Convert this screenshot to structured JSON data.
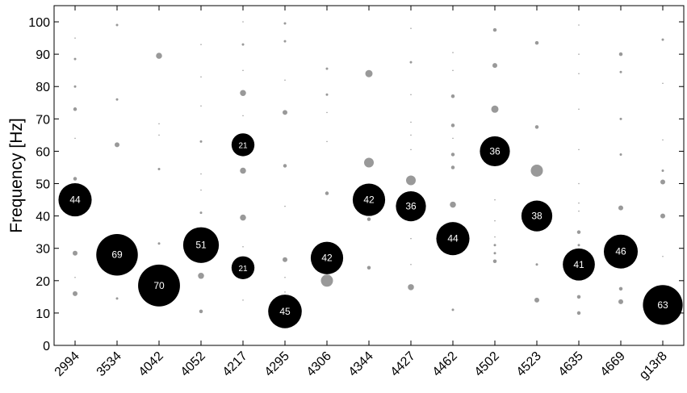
{
  "chart_data": {
    "type": "scatter",
    "subtype": "bubble",
    "ylabel": "Frequency [Hz]",
    "xlabel": "",
    "ylim": [
      0,
      105
    ],
    "yticks": [
      0,
      10,
      20,
      30,
      40,
      50,
      60,
      70,
      80,
      90,
      100
    ],
    "categories": [
      "2994",
      "3534",
      "4042",
      "4052",
      "4217",
      "4295",
      "4306",
      "4344",
      "4427",
      "4462",
      "4502",
      "4523",
      "4635",
      "4669",
      "g13r8"
    ],
    "grid": false,
    "colors": {
      "highlight": "#000000",
      "background_points": "#999999",
      "label": "#ffffff"
    },
    "highlighted": [
      {
        "category": "2994",
        "y": 45,
        "value": 44
      },
      {
        "category": "3534",
        "y": 28,
        "value": 69
      },
      {
        "category": "4042",
        "y": 18.5,
        "value": 70
      },
      {
        "category": "4052",
        "y": 31,
        "value": 51
      },
      {
        "category": "4217",
        "y": 62,
        "value": 21
      },
      {
        "category": "4217",
        "y": 24,
        "value": 21
      },
      {
        "category": "4295",
        "y": 10.5,
        "value": 45
      },
      {
        "category": "4306",
        "y": 27,
        "value": 42
      },
      {
        "category": "4344",
        "y": 45,
        "value": 42
      },
      {
        "category": "4427",
        "y": 43,
        "value": 36
      },
      {
        "category": "4462",
        "y": 33,
        "value": 44
      },
      {
        "category": "4502",
        "y": 60,
        "value": 36
      },
      {
        "category": "4523",
        "y": 40,
        "value": 38
      },
      {
        "category": "4635",
        "y": 25,
        "value": 41
      },
      {
        "category": "4669",
        "y": 29,
        "value": 46
      },
      {
        "category": "g13r8",
        "y": 12.5,
        "value": 63
      }
    ],
    "background": [
      {
        "category": "2994",
        "points": [
          [
            95,
            1
          ],
          [
            88.5,
            2
          ],
          [
            80,
            2
          ],
          [
            73,
            3
          ],
          [
            64,
            1
          ],
          [
            51.5,
            3
          ],
          [
            28.5,
            4
          ],
          [
            21,
            1
          ],
          [
            16,
            4
          ]
        ]
      },
      {
        "category": "3534",
        "points": [
          [
            99,
            2
          ],
          [
            76,
            2
          ],
          [
            62,
            4
          ],
          [
            14.5,
            2
          ]
        ]
      },
      {
        "category": "4042",
        "points": [
          [
            89.5,
            5
          ],
          [
            68.5,
            1
          ],
          [
            65,
            1
          ],
          [
            54.5,
            2
          ],
          [
            31.5,
            2
          ]
        ]
      },
      {
        "category": "4052",
        "points": [
          [
            93,
            1
          ],
          [
            83,
            1
          ],
          [
            74,
            1
          ],
          [
            63,
            2
          ],
          [
            53,
            1
          ],
          [
            48,
            1
          ],
          [
            41,
            2
          ],
          [
            21.5,
            5
          ],
          [
            10.5,
            3
          ]
        ]
      },
      {
        "category": "4217",
        "points": [
          [
            100,
            1
          ],
          [
            93,
            2
          ],
          [
            85,
            1
          ],
          [
            78,
            5
          ],
          [
            71,
            1
          ],
          [
            54,
            5
          ],
          [
            39.5,
            5
          ],
          [
            30.5,
            1
          ],
          [
            14,
            1
          ]
        ]
      },
      {
        "category": "4295",
        "points": [
          [
            99.5,
            2
          ],
          [
            94,
            2
          ],
          [
            82,
            1
          ],
          [
            72,
            4
          ],
          [
            55.5,
            3
          ],
          [
            43,
            1
          ],
          [
            26.5,
            4
          ],
          [
            21,
            1
          ],
          [
            16.5,
            1
          ]
        ]
      },
      {
        "category": "4306",
        "points": [
          [
            85.5,
            2
          ],
          [
            77.5,
            2
          ],
          [
            72,
            1
          ],
          [
            63,
            1
          ],
          [
            47,
            3
          ],
          [
            20,
            10
          ]
        ]
      },
      {
        "category": "4344",
        "points": [
          [
            84,
            6
          ],
          [
            56.5,
            8
          ],
          [
            39,
            3
          ],
          [
            24,
            3
          ]
        ]
      },
      {
        "category": "4427",
        "points": [
          [
            98,
            1
          ],
          [
            87.5,
            2
          ],
          [
            77.5,
            1
          ],
          [
            69,
            1
          ],
          [
            65,
            1
          ],
          [
            60.5,
            1
          ],
          [
            51,
            8
          ],
          [
            33,
            1
          ],
          [
            25,
            1
          ],
          [
            18,
            5
          ]
        ]
      },
      {
        "category": "4462",
        "points": [
          [
            90.5,
            1
          ],
          [
            85,
            1
          ],
          [
            77,
            3
          ],
          [
            68,
            3
          ],
          [
            64,
            1
          ],
          [
            59,
            3
          ],
          [
            55,
            3
          ],
          [
            43.5,
            5
          ],
          [
            11,
            2
          ]
        ]
      },
      {
        "category": "4502",
        "points": [
          [
            97.5,
            3
          ],
          [
            86.5,
            4
          ],
          [
            73,
            6
          ],
          [
            45,
            1
          ],
          [
            38.5,
            1
          ],
          [
            33.5,
            1
          ],
          [
            31,
            2
          ],
          [
            28.5,
            2
          ],
          [
            26,
            3
          ]
        ]
      },
      {
        "category": "4523",
        "points": [
          [
            93.5,
            3
          ],
          [
            67.5,
            3
          ],
          [
            54,
            10
          ],
          [
            25,
            2
          ],
          [
            14,
            4
          ]
        ]
      },
      {
        "category": "4635",
        "points": [
          [
            99,
            1
          ],
          [
            90,
            1
          ],
          [
            84,
            1
          ],
          [
            73,
            1
          ],
          [
            60.5,
            1
          ],
          [
            50,
            1
          ],
          [
            44,
            1
          ],
          [
            41.5,
            1
          ],
          [
            35,
            3
          ],
          [
            31,
            2
          ],
          [
            20.5,
            1
          ],
          [
            15,
            3
          ],
          [
            10,
            3
          ]
        ]
      },
      {
        "category": "4669",
        "points": [
          [
            90,
            3
          ],
          [
            84.5,
            2
          ],
          [
            70,
            2
          ],
          [
            59,
            2
          ],
          [
            42.5,
            4
          ],
          [
            17.5,
            3
          ],
          [
            13.5,
            4
          ]
        ]
      },
      {
        "category": "g13r8",
        "points": [
          [
            94.5,
            2
          ],
          [
            81,
            1
          ],
          [
            63.5,
            1
          ],
          [
            54,
            2
          ],
          [
            50.5,
            4
          ],
          [
            40,
            4
          ],
          [
            27.5,
            1
          ]
        ]
      }
    ]
  }
}
